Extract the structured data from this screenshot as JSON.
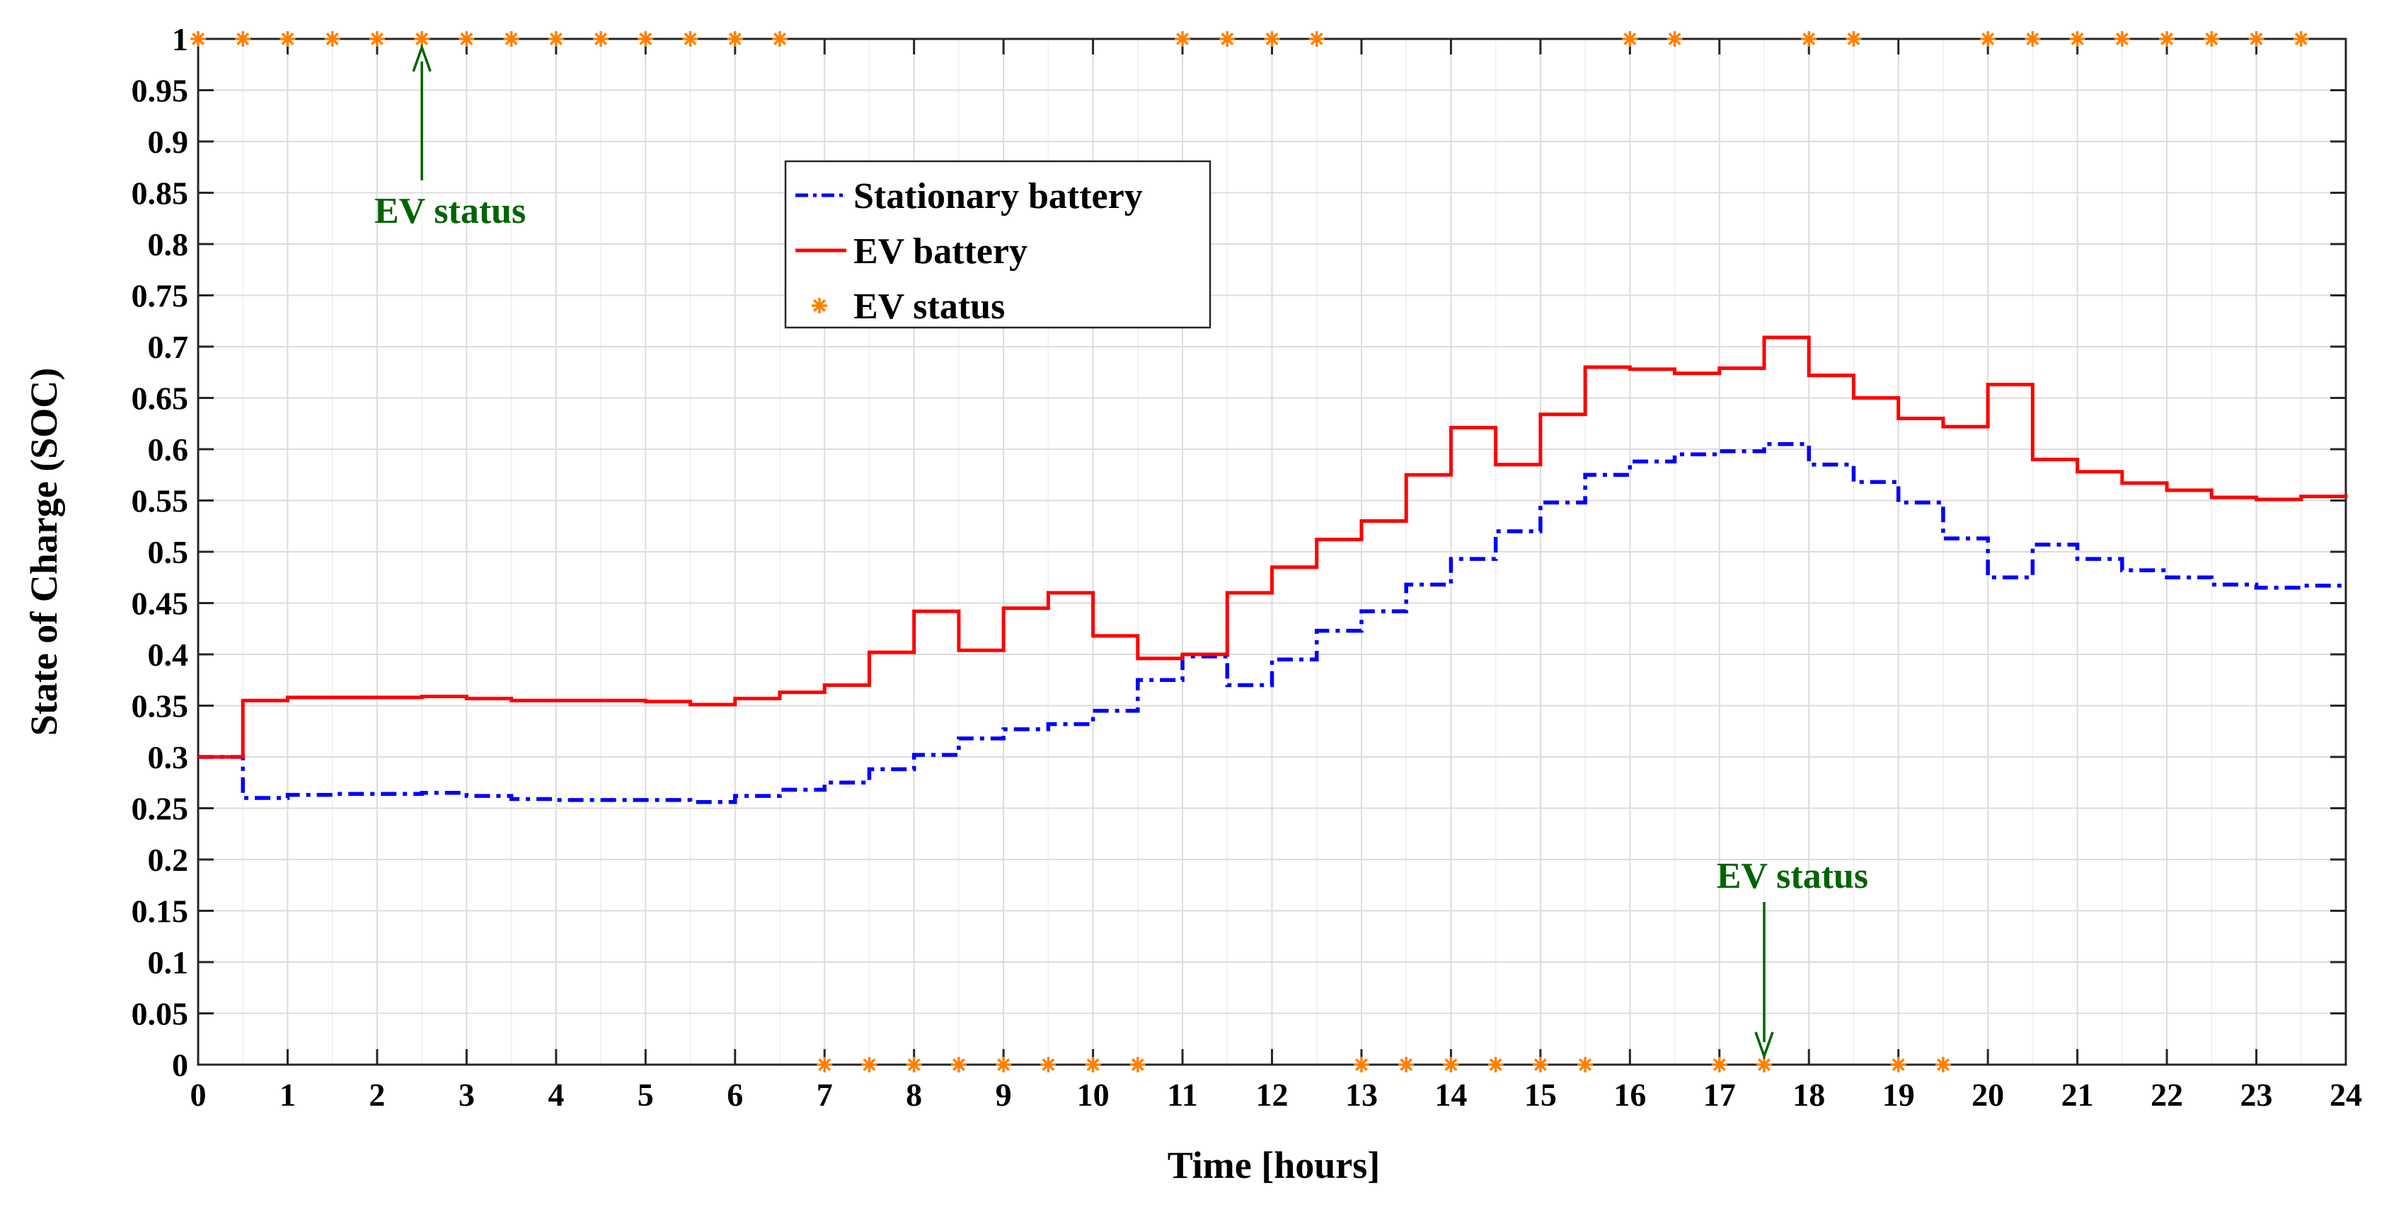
{
  "chart_data": {
    "type": "line",
    "title": "",
    "xlabel": "Time [hours]",
    "ylabel": "State of Charge (SOC)",
    "xlim": [
      0,
      24
    ],
    "ylim": [
      0,
      1
    ],
    "xticks": [
      0,
      1,
      2,
      3,
      4,
      5,
      6,
      7,
      8,
      9,
      10,
      11,
      12,
      13,
      14,
      15,
      16,
      17,
      18,
      19,
      20,
      21,
      22,
      23,
      24
    ],
    "xtick_labels": [
      "0",
      "1",
      "2",
      "3",
      "4",
      "5",
      "6",
      "7",
      "8",
      "9",
      "10",
      "11",
      "12",
      "13",
      "14",
      "15",
      "16",
      "17",
      "18",
      "19",
      "20",
      "21",
      "22",
      "23",
      "24"
    ],
    "yticks": [
      0,
      0.05,
      0.1,
      0.15,
      0.2,
      0.25,
      0.3,
      0.35,
      0.4,
      0.45,
      0.5,
      0.55,
      0.6,
      0.65,
      0.7,
      0.75,
      0.8,
      0.85,
      0.9,
      0.95,
      1
    ],
    "ytick_labels": [
      "0",
      "0.05",
      "0.1",
      "0.15",
      "0.2",
      "0.25",
      "0.3",
      "0.35",
      "0.4",
      "0.45",
      "0.5",
      "0.55",
      "0.6",
      "0.65",
      "0.7",
      "0.75",
      "0.8",
      "0.85",
      "0.9",
      "0.95",
      "1"
    ],
    "grid": true,
    "legend": {
      "placement": "upper-center-left",
      "entries": [
        "Stationary battery",
        "EV battery",
        "EV status"
      ]
    },
    "series": [
      {
        "name": "Stationary battery",
        "style": "dash-dot",
        "color": "#0000ff",
        "step": true,
        "x": [
          0,
          0.5,
          1,
          1.5,
          2,
          2.5,
          3,
          3.5,
          4,
          4.5,
          5,
          5.5,
          6,
          6.5,
          7,
          7.5,
          8,
          8.5,
          9,
          9.5,
          10,
          10.5,
          11,
          11.5,
          12,
          12.5,
          13,
          13.5,
          14,
          14.5,
          15,
          15.5,
          16,
          16.5,
          17,
          17.5,
          18,
          18.5,
          19,
          19.5,
          20,
          20.5,
          21,
          21.5,
          22,
          22.5,
          23,
          23.5,
          24
        ],
        "values": [
          0.3,
          0.26,
          0.263,
          0.264,
          0.264,
          0.265,
          0.262,
          0.259,
          0.258,
          0.258,
          0.258,
          0.256,
          0.262,
          0.268,
          0.275,
          0.288,
          0.302,
          0.318,
          0.327,
          0.332,
          0.345,
          0.375,
          0.398,
          0.37,
          0.395,
          0.423,
          0.442,
          0.468,
          0.493,
          0.52,
          0.548,
          0.575,
          0.588,
          0.595,
          0.598,
          0.605,
          0.585,
          0.568,
          0.548,
          0.513,
          0.475,
          0.507,
          0.493,
          0.482,
          0.475,
          0.468,
          0.465,
          0.467,
          0.467
        ]
      },
      {
        "name": "EV battery",
        "style": "solid",
        "color": "#ff0000",
        "step": true,
        "x": [
          0,
          0.5,
          1,
          1.5,
          2,
          2.5,
          3,
          3.5,
          4,
          4.5,
          5,
          5.5,
          6,
          6.5,
          7,
          7.5,
          8,
          8.5,
          9,
          9.5,
          10,
          10.5,
          11,
          11.5,
          12,
          12.5,
          13,
          13.5,
          14,
          14.5,
          15,
          15.5,
          16,
          16.5,
          17,
          17.5,
          18,
          18.5,
          19,
          19.5,
          20,
          20.5,
          21,
          21.5,
          22,
          22.5,
          23,
          23.5,
          24
        ],
        "values": [
          0.3,
          0.355,
          0.358,
          0.358,
          0.358,
          0.359,
          0.357,
          0.355,
          0.355,
          0.355,
          0.354,
          0.351,
          0.357,
          0.363,
          0.37,
          0.402,
          0.442,
          0.404,
          0.445,
          0.46,
          0.418,
          0.396,
          0.4,
          0.46,
          0.485,
          0.512,
          0.53,
          0.575,
          0.621,
          0.585,
          0.634,
          0.68,
          0.678,
          0.674,
          0.679,
          0.709,
          0.672,
          0.65,
          0.63,
          0.622,
          0.663,
          0.59,
          0.578,
          0.567,
          0.56,
          0.553,
          0.551,
          0.554,
          0.556
        ]
      },
      {
        "name": "EV status",
        "style": "markers",
        "marker": "asterisk",
        "color": "#ff8000",
        "x": [
          0,
          0.5,
          1,
          1.5,
          2,
          2.5,
          3,
          3.5,
          4,
          4.5,
          5,
          5.5,
          6,
          6.5,
          7,
          7.5,
          8,
          8.5,
          9,
          9.5,
          10,
          10.5,
          11,
          11.5,
          12,
          12.5,
          13,
          13.5,
          14,
          14.5,
          15,
          15.5,
          16,
          16.5,
          17,
          17.5,
          18,
          18.5,
          19,
          19.5,
          20,
          20.5,
          21,
          21.5,
          22,
          22.5,
          23,
          23.5
        ],
        "values": [
          1,
          1,
          1,
          1,
          1,
          1,
          1,
          1,
          1,
          1,
          1,
          1,
          1,
          1,
          0,
          0,
          0,
          0,
          0,
          0,
          0,
          0,
          1,
          1,
          1,
          1,
          0,
          0,
          0,
          0,
          0,
          0,
          1,
          1,
          0,
          0,
          1,
          1,
          0,
          0,
          1,
          1,
          1,
          1,
          1,
          1,
          1,
          1
        ]
      }
    ],
    "annotations": [
      {
        "text": "EV status",
        "arrow_to": [
          2.5,
          1
        ],
        "color": "#006400",
        "position": "below-arrow"
      },
      {
        "text": "EV status",
        "arrow_to": [
          17.5,
          0
        ],
        "color": "#006400",
        "position": "above-arrow"
      }
    ]
  }
}
